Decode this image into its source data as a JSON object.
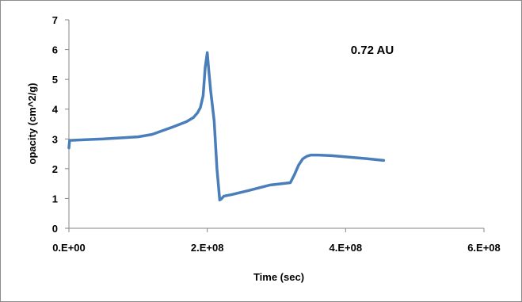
{
  "chart_data": {
    "type": "line",
    "title": "",
    "xlabel": "Time (sec)",
    "ylabel": "opacity (cm^2/g)",
    "xlim": [
      0,
      600000000
    ],
    "ylim": [
      0,
      7
    ],
    "x_ticks": [
      0,
      200000000,
      400000000,
      600000000
    ],
    "x_tick_labels": [
      "0.E+00",
      "2.E+08",
      "4.E+08",
      "6.E+08"
    ],
    "y_ticks": [
      0,
      1,
      2,
      3,
      4,
      5,
      6,
      7
    ],
    "y_tick_labels": [
      "0",
      "1",
      "2",
      "3",
      "4",
      "5",
      "6",
      "7"
    ],
    "grid": false,
    "legend": "none",
    "annotations": [
      {
        "text": "0.72 AU"
      }
    ],
    "series": [
      {
        "color": "#4a7ebb",
        "x": [
          0,
          1000000,
          50000000,
          100000000,
          120000000,
          150000000,
          170000000,
          180000000,
          186000000,
          190000000,
          194000000,
          197000000,
          200000000,
          202000000,
          205000000,
          210000000,
          214000000,
          218000000,
          220000000,
          224000000,
          235000000,
          260000000,
          290000000,
          320000000,
          326000000,
          332000000,
          338000000,
          344000000,
          350000000,
          360000000,
          380000000,
          400000000,
          430000000,
          455000000
        ],
        "y": [
          2.7,
          2.95,
          3.0,
          3.07,
          3.15,
          3.4,
          3.58,
          3.72,
          3.88,
          4.05,
          4.45,
          5.4,
          5.9,
          5.35,
          4.6,
          3.6,
          2.0,
          0.95,
          0.98,
          1.08,
          1.13,
          1.27,
          1.45,
          1.53,
          1.8,
          2.12,
          2.33,
          2.42,
          2.46,
          2.46,
          2.44,
          2.4,
          2.34,
          2.28
        ]
      }
    ]
  }
}
